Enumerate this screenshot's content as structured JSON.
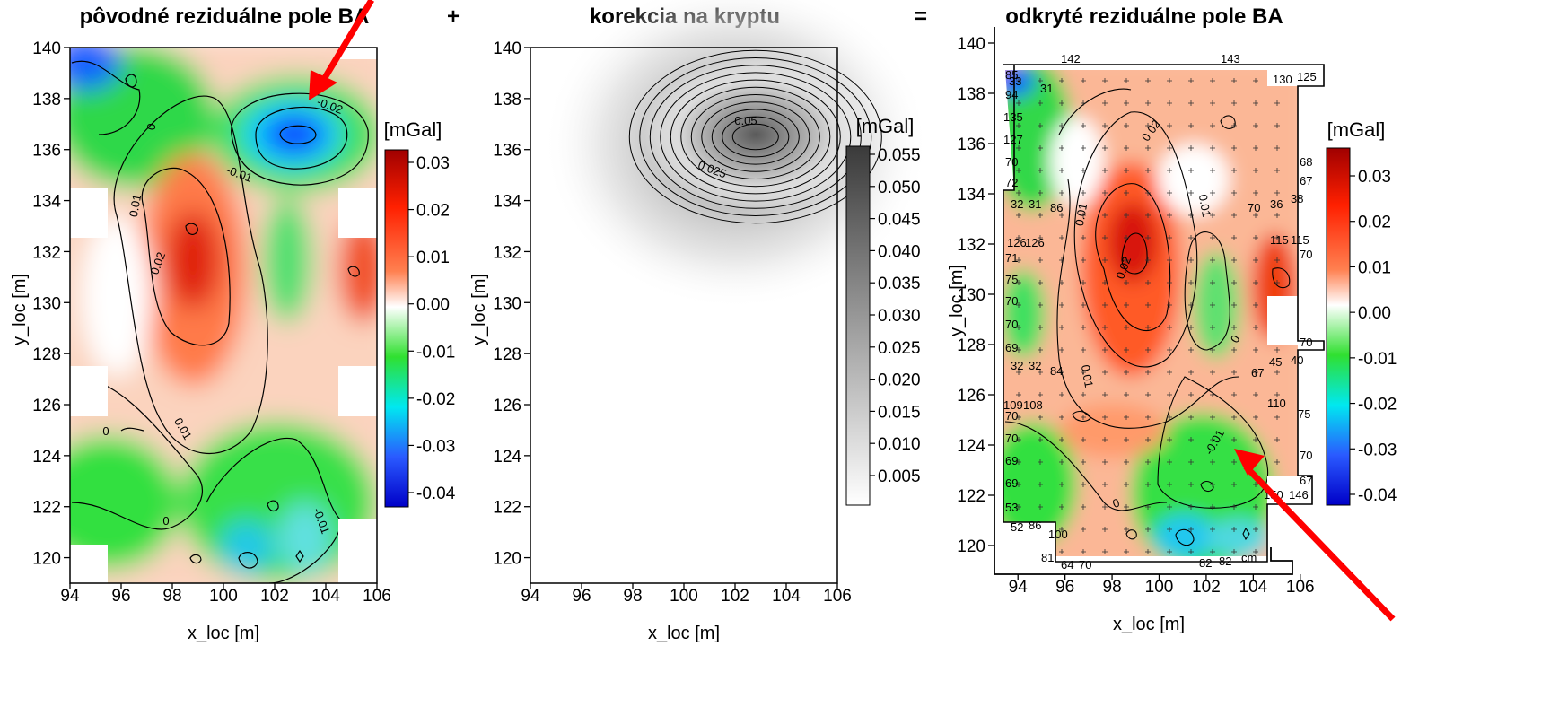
{
  "operators": {
    "plus": "+",
    "equals": "="
  },
  "chart_data": [
    {
      "type": "heatmap",
      "title": "pôvodné reziduálne pole BA",
      "xlabel": "x_loc [m]",
      "ylabel": "y_loc [m]",
      "xlim": [
        94,
        106
      ],
      "ylim": [
        119,
        140
      ],
      "x_ticks": [
        94,
        96,
        98,
        100,
        102,
        104,
        106
      ],
      "y_ticks": [
        120,
        122,
        124,
        126,
        128,
        130,
        132,
        134,
        136,
        138,
        140
      ],
      "colorbar": {
        "unit": "[mGal]",
        "ticks": [
          "0.03",
          "0.02",
          "0.01",
          "0.00",
          "-0.01",
          "-0.02",
          "-0.03",
          "-0.04"
        ],
        "colors": [
          "#b00000",
          "#ff3000",
          "#ffa070",
          "#ffffff",
          "#30e030",
          "#00e0ff",
          "#2050ff",
          "#0000c0"
        ]
      },
      "contour_labels": [
        "-0.02",
        "-0.01",
        "0",
        "0",
        "0.01",
        "0.02",
        "0.01",
        "0",
        "-0.01"
      ],
      "features": [
        {
          "name": "negative anomaly",
          "center": [
            103,
            136.5
          ],
          "value": -0.04
        },
        {
          "name": "positive anomaly",
          "center": [
            98.8,
            131.5
          ],
          "value": 0.03
        },
        {
          "name": "negative area",
          "center": [
            101,
            121
          ],
          "value": -0.03
        }
      ]
    },
    {
      "type": "heatmap",
      "title": "korekcia na kryptu",
      "xlabel": "x_loc [m]",
      "ylabel": "y_loc [m]",
      "xlim": [
        94,
        106
      ],
      "ylim": [
        119,
        140
      ],
      "x_ticks": [
        94,
        96,
        98,
        100,
        102,
        104,
        106
      ],
      "y_ticks": [
        120,
        122,
        124,
        126,
        128,
        130,
        132,
        134,
        136,
        138,
        140
      ],
      "colorbar": {
        "unit": "[mGal]",
        "ticks": [
          "0.055",
          "0.050",
          "0.045",
          "0.040",
          "0.035",
          "0.030",
          "0.025",
          "0.020",
          "0.015",
          "0.010",
          "0.005"
        ],
        "colors": [
          "#404040",
          "#ffffff"
        ]
      },
      "contour_labels": [
        "0.05",
        "0.025"
      ],
      "features": [
        {
          "name": "crypt correction peak",
          "center": [
            102.8,
            136.5
          ],
          "value": 0.057
        }
      ]
    },
    {
      "type": "heatmap",
      "title": "odkryté reziduálne pole BA",
      "xlabel": "x_loc [m]",
      "ylabel": "y_loc [m]",
      "xlim": [
        93,
        107
      ],
      "ylim": [
        118.5,
        141
      ],
      "x_ticks": [
        94,
        96,
        98,
        100,
        102,
        104,
        106
      ],
      "y_ticks": [
        120,
        122,
        124,
        126,
        128,
        130,
        132,
        134,
        136,
        138,
        140
      ],
      "colorbar": {
        "unit": "[mGal]",
        "ticks": [
          "0.03",
          "0.02",
          "0.01",
          "0.00",
          "-0.01",
          "-0.02",
          "-0.03",
          "-0.04"
        ],
        "colors": [
          "#b00000",
          "#ff3000",
          "#ffa070",
          "#ffffff",
          "#30e030",
          "#00e0ff",
          "#2050ff",
          "#0000c0"
        ]
      },
      "contour_labels": [
        "0.02",
        "0.01",
        "0.01",
        "0.02",
        "0.01",
        "0",
        "-0.01",
        "0"
      ],
      "wall_thickness_labels": [
        "33",
        "31",
        "142",
        "143",
        "130",
        "125",
        "85",
        "94",
        "135",
        "127",
        "70",
        "72",
        "68",
        "67",
        "32",
        "31",
        "86",
        "36",
        "38",
        "70",
        "126",
        "126",
        "115",
        "115",
        "71",
        "70",
        "75",
        "70",
        "70",
        "69",
        "70",
        "32",
        "32",
        "84",
        "67",
        "45",
        "40",
        "109",
        "108",
        "110",
        "70",
        "75",
        "70",
        "69",
        "70",
        "69",
        "67",
        "150",
        "146",
        "53",
        "52",
        "86",
        "100",
        "81",
        "64",
        "70",
        "82",
        "82",
        "cm"
      ],
      "features": [
        {
          "name": "positive anomaly",
          "center": [
            98.9,
            132.8
          ],
          "value": 0.03
        },
        {
          "name": "negative anomaly",
          "center": [
            101.2,
            120
          ],
          "value": -0.03
        }
      ]
    }
  ]
}
